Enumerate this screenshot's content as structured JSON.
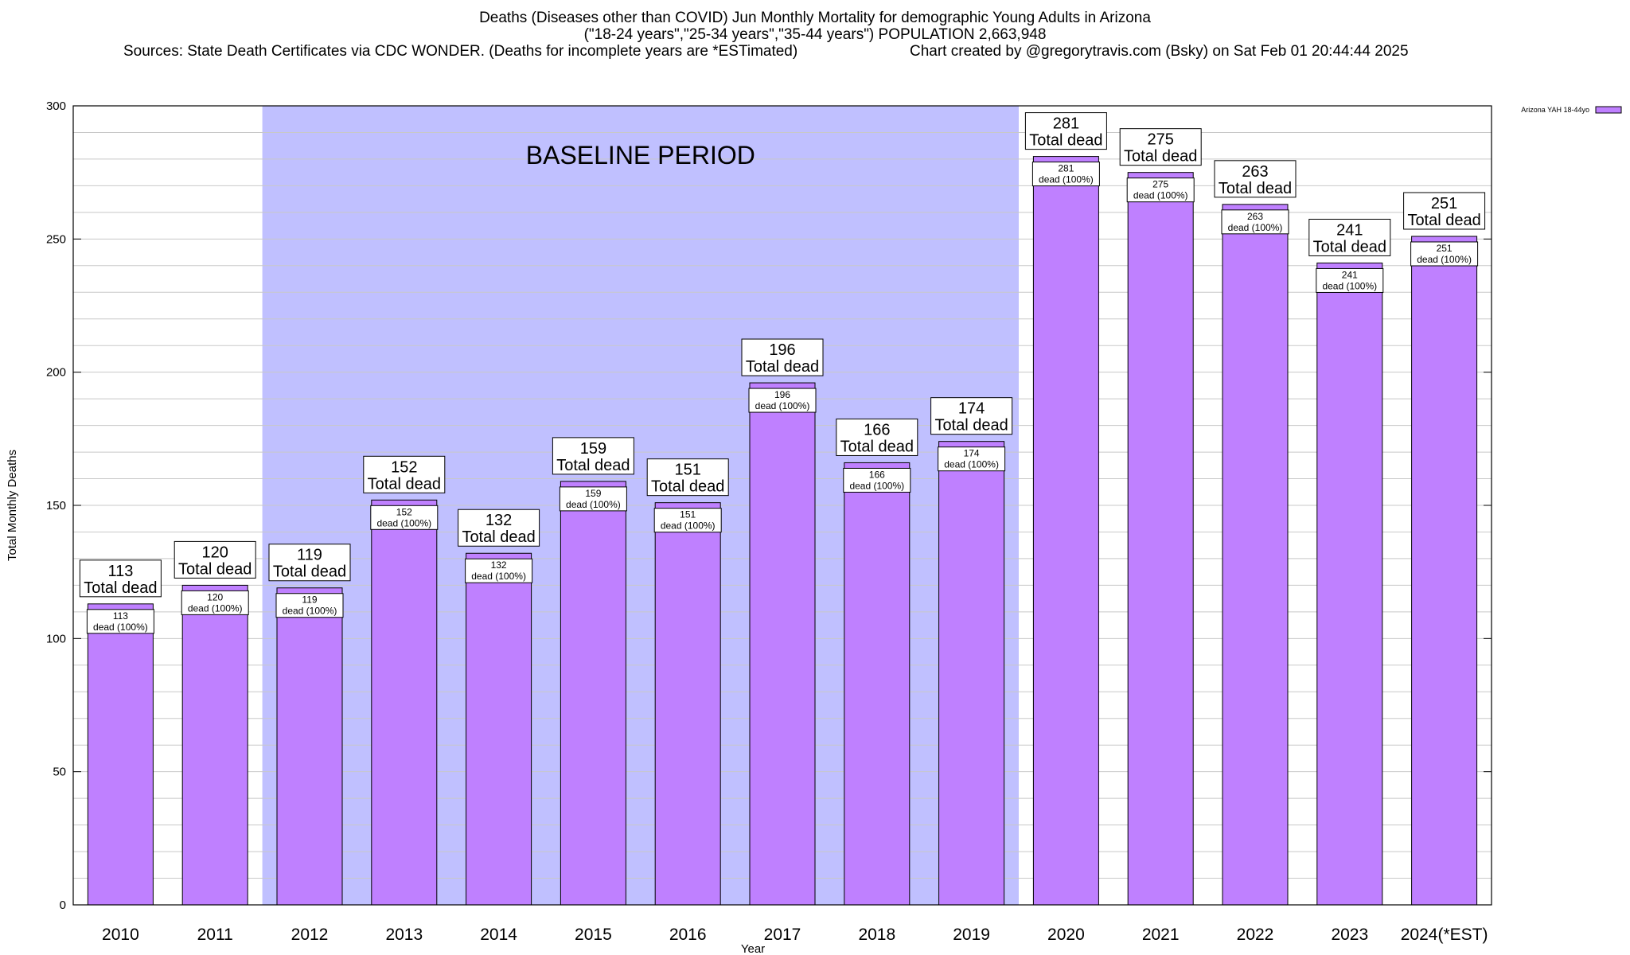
{
  "title": {
    "line1": "Deaths (Diseases other than COVID) Jun Monthly Mortality for demographic Young Adults in Arizona",
    "line2": "(\"18-24 years\",\"25-34 years\",\"35-44 years\") POPULATION 2,663,948",
    "line3_left": "Sources: State Death Certificates via CDC WONDER. (Deaths for incomplete years are *ESTimated)",
    "line3_right": "Chart created by @gregorytravis.com (Bsky) on Sat Feb 01 20:44:44 2025"
  },
  "colors": {
    "bar_fill": "#bf80ff",
    "baseline_band": "#c0c0ff",
    "grid": "#c8c8c8",
    "axis": "#000000"
  },
  "chart_data": {
    "type": "bar",
    "xlabel": "Year",
    "ylabel": "Total Monthly Deaths",
    "ylim": [
      0,
      300
    ],
    "yticks": [
      0,
      50,
      100,
      150,
      200,
      250,
      300
    ],
    "grid": true,
    "legend_position": "top-right",
    "categories": [
      "2010",
      "2011",
      "2012",
      "2013",
      "2014",
      "2015",
      "2016",
      "2017",
      "2018",
      "2019",
      "2020",
      "2021",
      "2022",
      "2023",
      "2024(*EST)"
    ],
    "series": [
      {
        "name": "Arizona YAH 18-44yo",
        "values": [
          113,
          120,
          119,
          152,
          132,
          159,
          151,
          196,
          166,
          174,
          281,
          275,
          263,
          241,
          251
        ]
      }
    ],
    "top_label_suffix": "Total dead",
    "inner_label_suffix": "dead (100%)",
    "annotation": {
      "text": "BASELINE PERIOD",
      "start_category": "2012",
      "end_category": "2019"
    }
  }
}
